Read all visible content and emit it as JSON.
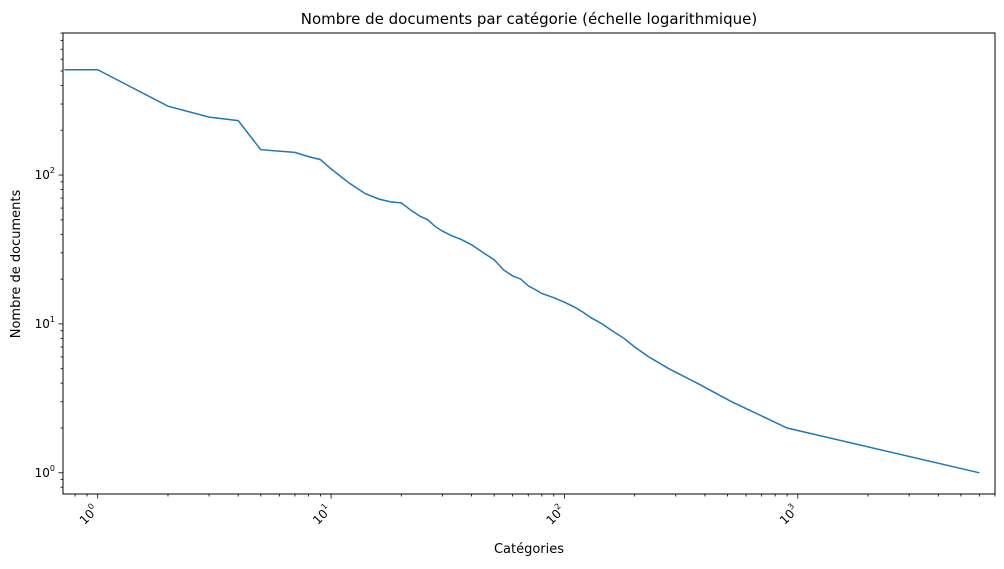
{
  "chart_data": {
    "type": "line",
    "title": "Nombre de documents par catégorie (échelle logarithmique)",
    "xlabel": "Catégories",
    "ylabel": "Nombre de documents",
    "x_scale": "log",
    "y_scale": "log",
    "xlim": [
      0.71,
      7000
    ],
    "ylim": [
      0.72,
      900
    ],
    "grid": false,
    "legend": "none",
    "line_color": "#1f77b4",
    "x_ticks": [
      {
        "value": 1,
        "base": "10",
        "exp": "0"
      },
      {
        "value": 10,
        "base": "10",
        "exp": "1"
      },
      {
        "value": 100,
        "base": "10",
        "exp": "2"
      },
      {
        "value": 1000,
        "base": "10",
        "exp": "3"
      }
    ],
    "y_ticks": [
      {
        "value": 1,
        "base": "10",
        "exp": "0"
      },
      {
        "value": 10,
        "base": "10",
        "exp": "1"
      },
      {
        "value": 100,
        "base": "10",
        "exp": "2"
      }
    ],
    "series": [
      {
        "x": [
          0.72,
          1,
          2,
          3,
          4,
          5,
          7,
          8,
          9,
          10,
          12,
          14,
          16,
          18,
          20,
          22,
          24,
          26,
          28,
          30,
          33,
          36,
          40,
          45,
          50,
          55,
          60,
          65,
          70,
          75,
          80,
          90,
          100,
          110,
          120,
          130,
          145,
          160,
          180,
          200,
          230,
          280,
          370,
          520,
          900,
          6000
        ],
        "y": [
          510,
          510,
          290,
          245,
          232,
          148,
          142,
          133,
          127,
          110,
          88,
          75,
          69,
          66,
          65,
          58,
          53,
          50,
          45,
          42,
          39,
          37,
          34,
          30,
          27,
          23,
          21,
          20,
          18,
          17,
          16,
          15,
          14,
          13,
          12,
          11,
          10,
          9,
          8,
          7,
          6,
          5,
          4,
          3,
          2,
          1
        ]
      }
    ]
  }
}
